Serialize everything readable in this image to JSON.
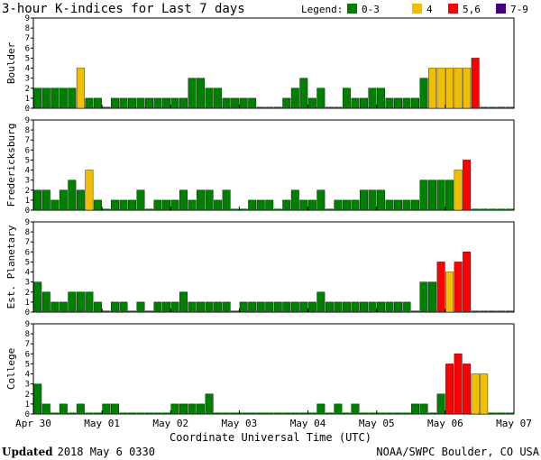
{
  "chart_data": {
    "type": "bar",
    "title": "3-hour K-indices for Last 7 days",
    "legend": {
      "label": "Legend:",
      "placement": "top-right",
      "items": [
        {
          "label": "0-3",
          "color": "#008000"
        },
        {
          "label": "4",
          "color": "#f0c000"
        },
        {
          "label": "5,6",
          "color": "#ff0000"
        },
        {
          "label": "7-9",
          "color": "#400080"
        }
      ]
    },
    "xlabel": "Coordinate Universal Time (UTC)",
    "x_ticks": [
      "Apr 30",
      "May 01",
      "May 02",
      "May 03",
      "May 04",
      "May 05",
      "May 06",
      "May 07"
    ],
    "ylim": [
      0,
      9
    ],
    "y_ticks": [
      "0",
      "1",
      "2",
      "3",
      "4",
      "5",
      "6",
      "7",
      "8",
      "9"
    ],
    "bars_per_panel": 56,
    "grid": false,
    "series": [
      {
        "name": "Boulder",
        "values": [
          2,
          2,
          2,
          2,
          2,
          4,
          1,
          1,
          0,
          1,
          1,
          1,
          1,
          1,
          1,
          1,
          1,
          1,
          3,
          3,
          2,
          2,
          1,
          1,
          1,
          1,
          0,
          0,
          0,
          1,
          2,
          3,
          1,
          2,
          0,
          0,
          2,
          1,
          1,
          2,
          2,
          1,
          1,
          1,
          1,
          3,
          4,
          4,
          4,
          4,
          4,
          5,
          0,
          0,
          0,
          0
        ]
      },
      {
        "name": "Fredericksburg",
        "values": [
          2,
          2,
          1,
          2,
          3,
          2,
          4,
          1,
          0,
          1,
          1,
          1,
          2,
          0,
          1,
          1,
          1,
          2,
          1,
          2,
          2,
          1,
          2,
          0,
          0,
          1,
          1,
          1,
          0,
          1,
          2,
          1,
          1,
          2,
          0,
          1,
          1,
          1,
          2,
          2,
          2,
          1,
          1,
          1,
          1,
          3,
          3,
          3,
          3,
          4,
          5,
          0,
          0,
          0,
          0,
          0
        ]
      },
      {
        "name": "Est. Planetary",
        "values": [
          3,
          2,
          1,
          1,
          2,
          2,
          2,
          1,
          0,
          1,
          1,
          0,
          1,
          0,
          1,
          1,
          1,
          2,
          1,
          1,
          1,
          1,
          1,
          0,
          1,
          1,
          1,
          1,
          1,
          1,
          1,
          1,
          1,
          2,
          1,
          1,
          1,
          1,
          1,
          1,
          1,
          1,
          1,
          1,
          0,
          3,
          3,
          5,
          4,
          5,
          6,
          0,
          0,
          0,
          0,
          0
        ]
      },
      {
        "name": "College",
        "values": [
          3,
          1,
          0,
          1,
          0,
          1,
          0,
          0,
          1,
          1,
          0,
          0,
          0,
          0,
          0,
          0,
          1,
          1,
          1,
          1,
          2,
          0,
          0,
          0,
          0,
          0,
          0,
          0,
          0,
          0,
          0,
          0,
          0,
          1,
          0,
          1,
          0,
          1,
          0,
          0,
          0,
          0,
          0,
          0,
          1,
          1,
          0,
          2,
          5,
          6,
          5,
          4,
          4,
          0,
          0,
          0
        ]
      }
    ]
  },
  "footer": {
    "updated_label": "Updated",
    "updated_time": "2018 May  6 0330",
    "source": "NOAA/SWPC Boulder, CO USA"
  }
}
